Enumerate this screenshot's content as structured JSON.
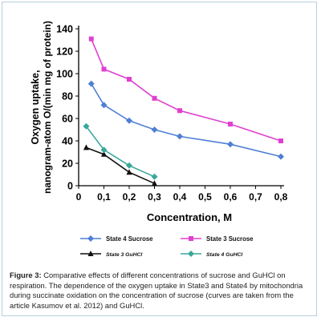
{
  "chart_data": {
    "type": "line",
    "xlabel": "Concentration, M",
    "ylabel_line1": "Oxygen uptake,",
    "ylabel_line2": "nanogram-atom O/(min mg of protein)",
    "xlim": [
      0,
      0.8
    ],
    "ylim": [
      0,
      140
    ],
    "x_ticks": [
      "0",
      "0,1",
      "0,2",
      "0,3",
      "0,4",
      "0,5",
      "0,6",
      "0,7",
      "0,8"
    ],
    "y_ticks": [
      "0",
      "20",
      "40",
      "60",
      "80",
      "100",
      "120",
      "140"
    ],
    "grid": false,
    "legend_placement": "bottom",
    "series": [
      {
        "name": "State 4 Sucrose",
        "color": "#4f7fd4",
        "marker": "diamond",
        "x": [
          0.05,
          0.1,
          0.2,
          0.3,
          0.4,
          0.6,
          0.8
        ],
        "y": [
          91,
          72,
          58,
          50,
          44,
          37,
          26
        ]
      },
      {
        "name": "State 3 Sucrose",
        "color": "#e040d0",
        "marker": "square",
        "x": [
          0.05,
          0.1,
          0.2,
          0.3,
          0.4,
          0.6,
          0.8
        ],
        "y": [
          131,
          104,
          95,
          78,
          67,
          55,
          40
        ]
      },
      {
        "name": "State 3 GuHCl",
        "color": "#111111",
        "marker": "triangle",
        "x": [
          0.03,
          0.1,
          0.2,
          0.3
        ],
        "y": [
          34,
          28,
          12,
          2
        ]
      },
      {
        "name": "State 4 GuHCl",
        "color": "#3aa89a",
        "marker": "diamond",
        "x": [
          0.03,
          0.1,
          0.2,
          0.3
        ],
        "y": [
          53,
          32,
          18,
          8
        ]
      }
    ]
  },
  "caption": {
    "label": "Figure 3:",
    "text": " Comparative effects of different concentrations of sucrose and GuHCl on respiration. The dependence of the oxygen uptake in State3 and State4 by mitochondria during succinate oxidation on the concentration of sucrose (curves are taken from the article Kasumov et al. 2012) and GuHCl."
  }
}
